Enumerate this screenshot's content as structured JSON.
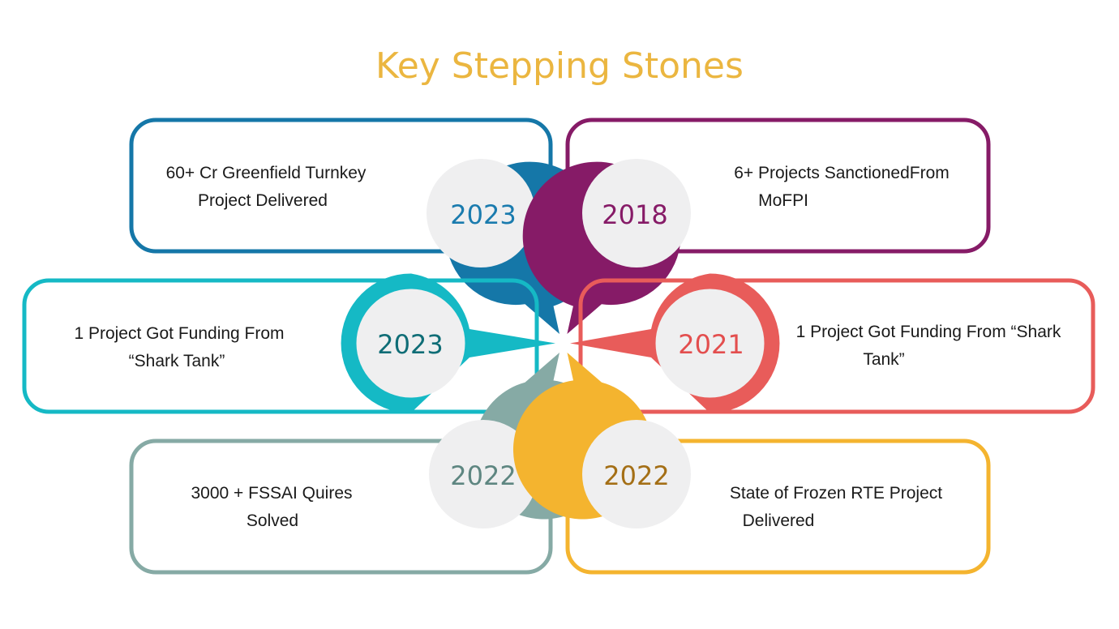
{
  "title": "Key Stepping Stones",
  "colors": {
    "title": "#EBB640",
    "disc": "#EFEFF0"
  },
  "milestones": [
    {
      "year": "2023",
      "color": "#1577A8",
      "year_color": "#1A7BAE",
      "text_lines": [
        "60+ Cr Greenfield Turnkey",
        "Project Delivered"
      ]
    },
    {
      "year": "2018",
      "color": "#861B67",
      "year_color": "#861B67",
      "text_lines": [
        "6+ Projects SanctionedFrom",
        "MoFPI"
      ]
    },
    {
      "year": "2023",
      "color": "#15B9C5",
      "year_color": "#0F6D76",
      "text_lines": [
        "1 Project Got Funding From",
        "“Shark Tank”"
      ]
    },
    {
      "year": "2021",
      "color": "#E85C5A",
      "year_color": "#E34E4E",
      "text_lines": [
        "1 Project Got Funding From “Shark",
        "Tank”"
      ]
    },
    {
      "year": "2022",
      "color": "#86AAA5",
      "year_color": "#5E8681",
      "text_lines": [
        "3000 + FSSAI Quires",
        "Solved"
      ]
    },
    {
      "year": "2022",
      "color": "#F4B42F",
      "year_color": "#A46F16",
      "text_lines": [
        "State of Frozen RTE Project",
        "Delivered"
      ]
    }
  ]
}
